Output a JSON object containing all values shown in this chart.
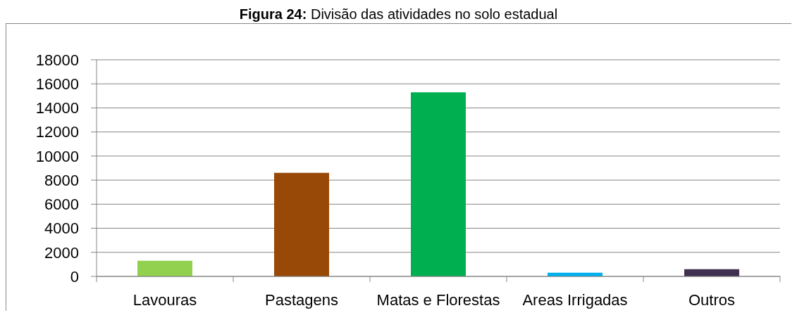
{
  "chart_data": {
    "type": "bar",
    "title": "Figura 24: Divisão das atividades no solo estadual",
    "categories": [
      "Lavouras",
      "Pastagens",
      "Matas e Florestas",
      "Areas Irrigadas",
      "Outros"
    ],
    "values": [
      1300,
      8600,
      15300,
      300,
      600
    ],
    "colors": [
      "#92d050",
      "#984807",
      "#00b050",
      "#00b0f0",
      "#403151"
    ],
    "ylim": [
      0,
      18000
    ],
    "yticks": [
      0,
      2000,
      4000,
      6000,
      8000,
      10000,
      12000,
      14000,
      16000,
      18000
    ],
    "grid": "y"
  }
}
